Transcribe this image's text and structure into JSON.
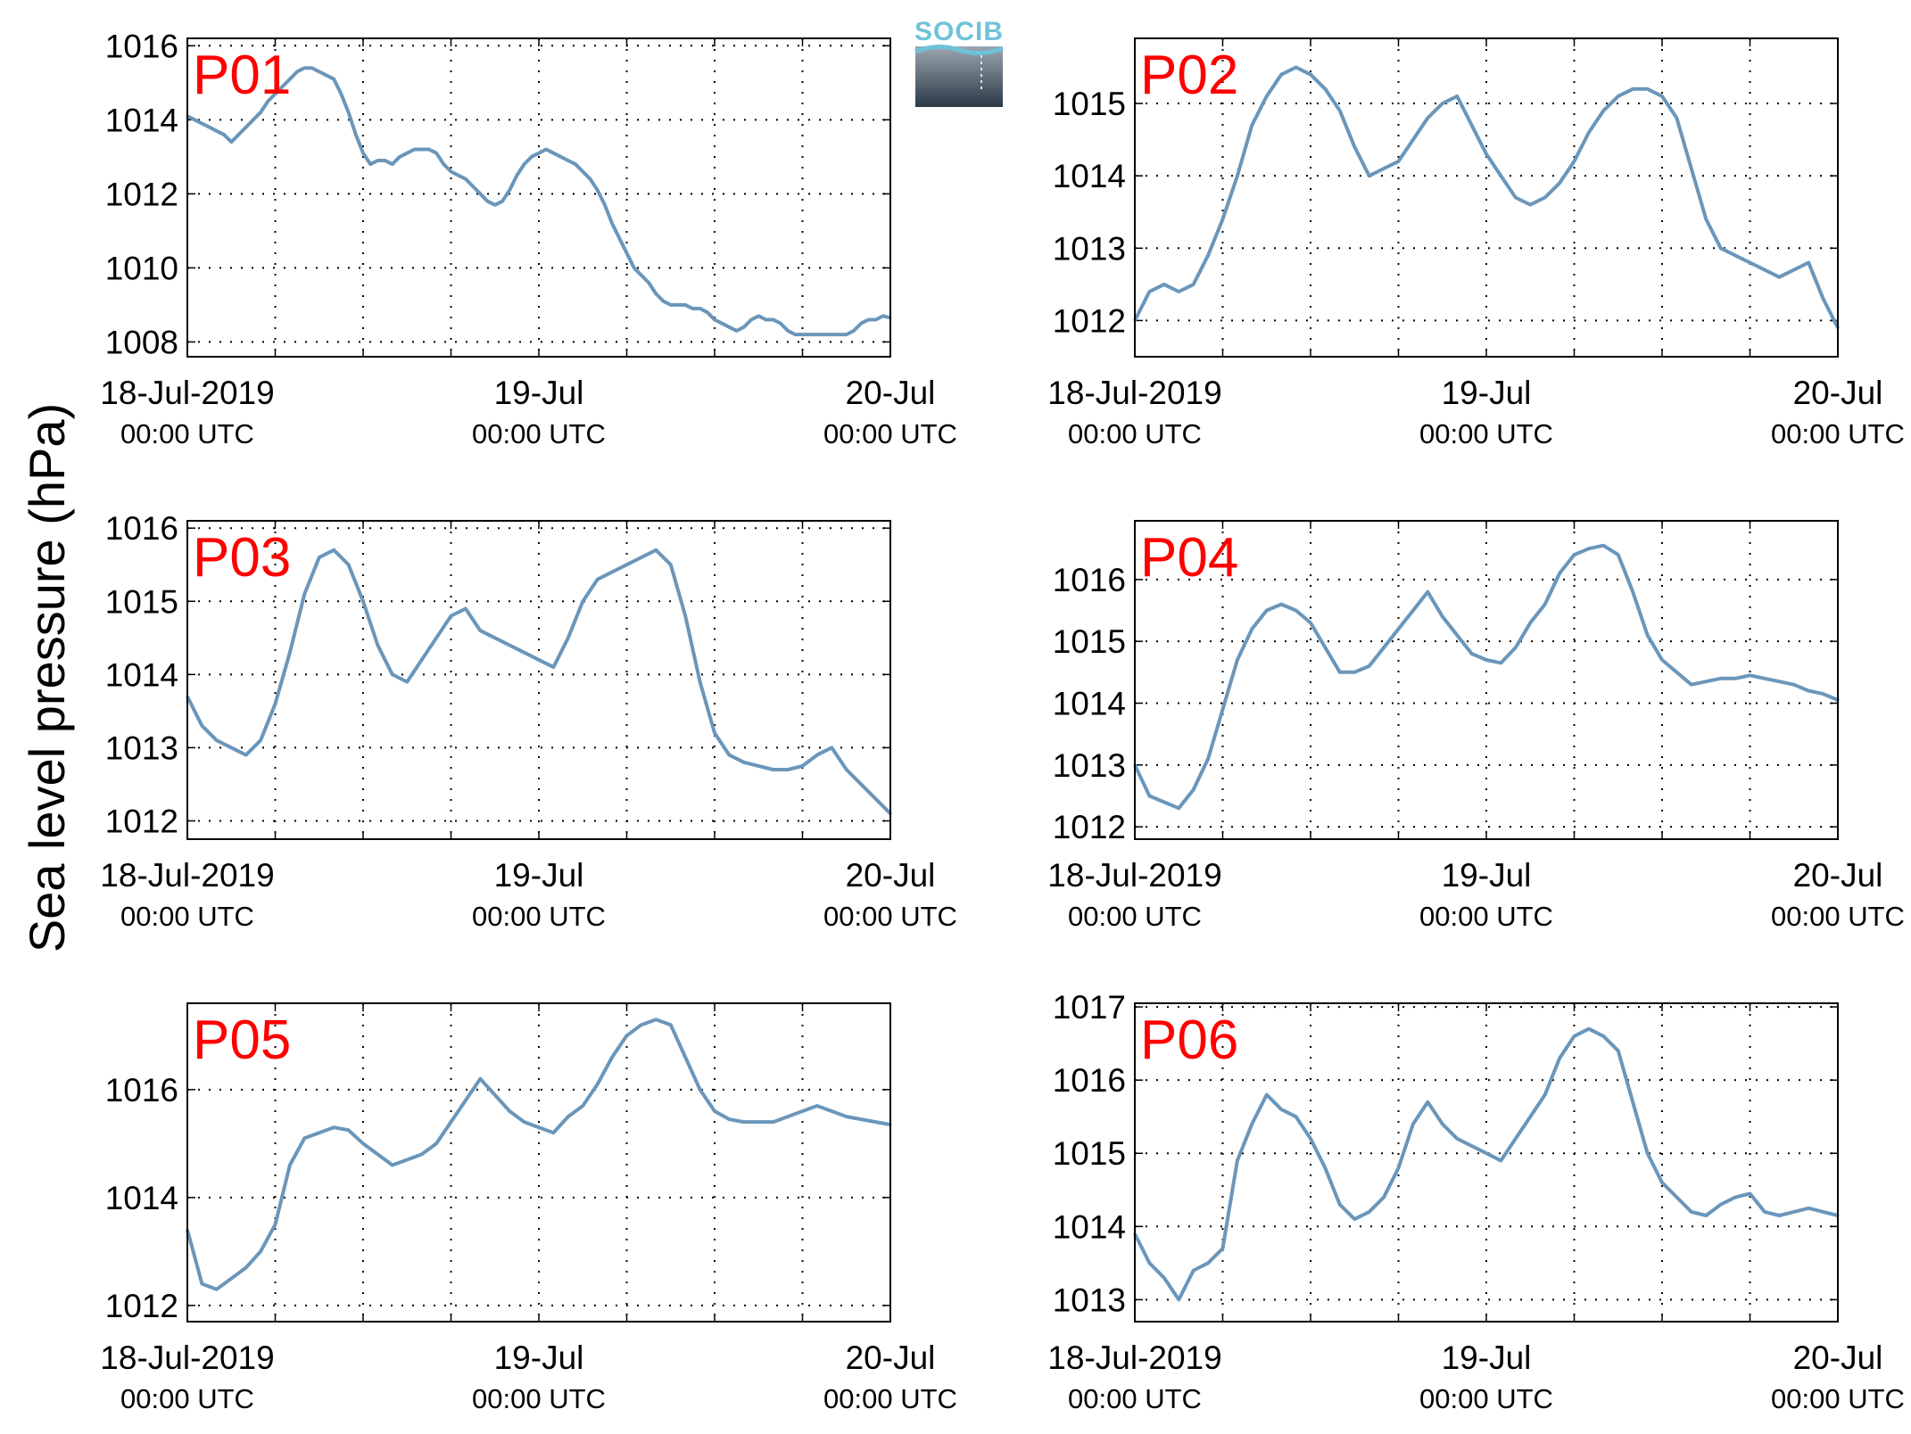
{
  "figure": {
    "ylabel": "Sea level pressure (hPa)",
    "logo_text": "SOCIB",
    "colors": {
      "line": "#6a96ba",
      "panel_label": "#ff0000",
      "axis": "#000000",
      "grid": "#000000"
    }
  },
  "chart_data": [
    {
      "type": "line",
      "panel": "P01",
      "xlim": [
        0,
        48
      ],
      "ylim": [
        1007.6,
        1016.2
      ],
      "yticks": [
        1008,
        1010,
        1012,
        1014,
        1016
      ],
      "xticks": [
        {
          "x": 0,
          "label": "18-Jul-2019",
          "sublabel": "00:00 UTC"
        },
        {
          "x": 24,
          "label": "19-Jul",
          "sublabel": "00:00 UTC"
        },
        {
          "x": 48,
          "label": "20-Jul",
          "sublabel": "00:00 UTC"
        }
      ],
      "x": [
        0,
        0.5,
        1,
        1.5,
        2,
        2.5,
        3,
        3.5,
        4,
        4.5,
        5,
        5.5,
        6,
        6.5,
        7,
        7.5,
        8,
        8.5,
        9,
        9.5,
        10,
        10.5,
        11,
        11.5,
        12,
        12.5,
        13,
        13.5,
        14,
        14.5,
        15,
        15.5,
        16,
        16.5,
        17,
        17.5,
        18,
        18.5,
        19,
        19.5,
        20,
        20.5,
        21,
        21.5,
        22,
        22.5,
        23,
        23.5,
        24,
        24.5,
        25,
        25.5,
        26,
        26.5,
        27,
        27.5,
        28,
        28.5,
        29,
        29.5,
        30,
        30.5,
        31,
        31.5,
        32,
        32.5,
        33,
        33.5,
        34,
        34.5,
        35,
        35.5,
        36,
        36.5,
        37,
        37.5,
        38,
        38.5,
        39,
        39.5,
        40,
        40.5,
        41,
        41.5,
        42,
        42.5,
        43,
        43.5,
        44,
        44.5,
        45,
        45.5,
        46,
        46.5,
        47,
        47.5,
        48
      ],
      "y": [
        1014.1,
        1014,
        1013.9,
        1013.8,
        1013.7,
        1013.6,
        1013.4,
        1013.6,
        1013.8,
        1014,
        1014.2,
        1014.5,
        1014.7,
        1014.9,
        1015.1,
        1015.3,
        1015.4,
        1015.4,
        1015.3,
        1015.2,
        1015.1,
        1014.7,
        1014.2,
        1013.6,
        1013.1,
        1012.8,
        1012.9,
        1012.9,
        1012.8,
        1013,
        1013.1,
        1013.2,
        1013.2,
        1013.2,
        1013.1,
        1012.8,
        1012.6,
        1012.5,
        1012.4,
        1012.2,
        1012,
        1011.8,
        1011.7,
        1011.8,
        1012.1,
        1012.5,
        1012.8,
        1013,
        1013.1,
        1013.2,
        1013.1,
        1013,
        1012.9,
        1012.8,
        1012.6,
        1012.4,
        1012.1,
        1011.7,
        1011.2,
        1010.8,
        1010.4,
        1010,
        1009.8,
        1009.6,
        1009.3,
        1009.1,
        1009,
        1009,
        1009,
        1008.9,
        1008.9,
        1008.8,
        1008.6,
        1008.5,
        1008.4,
        1008.3,
        1008.4,
        1008.6,
        1008.7,
        1008.6,
        1008.6,
        1008.5,
        1008.3,
        1008.2,
        1008.2,
        1008.2,
        1008.2,
        1008.2,
        1008.2,
        1008.2,
        1008.2,
        1008.3,
        1008.5,
        1008.6,
        1008.6,
        1008.7,
        1008.65
      ]
    },
    {
      "type": "line",
      "panel": "P02",
      "xlim": [
        0,
        48
      ],
      "ylim": [
        1011.5,
        1015.9
      ],
      "yticks": [
        1012,
        1013,
        1014,
        1015
      ],
      "xticks": [
        {
          "x": 0,
          "label": "18-Jul-2019",
          "sublabel": "00:00 UTC"
        },
        {
          "x": 24,
          "label": "19-Jul",
          "sublabel": "00:00 UTC"
        },
        {
          "x": 48,
          "label": "20-Jul",
          "sublabel": "00:00 UTC"
        }
      ],
      "x": [
        0,
        1,
        2,
        3,
        4,
        5,
        6,
        7,
        8,
        9,
        10,
        11,
        12,
        13,
        14,
        15,
        16,
        17,
        18,
        19,
        20,
        21,
        22,
        23,
        24,
        25,
        26,
        27,
        28,
        29,
        30,
        31,
        32,
        33,
        34,
        35,
        36,
        37,
        38,
        39,
        40,
        41,
        42,
        43,
        44,
        45,
        46,
        47,
        48
      ],
      "y": [
        1012,
        1012.4,
        1012.5,
        1012.4,
        1012.5,
        1012.9,
        1013.4,
        1014,
        1014.7,
        1015.1,
        1015.4,
        1015.5,
        1015.4,
        1015.2,
        1014.9,
        1014.4,
        1014,
        1014.1,
        1014.2,
        1014.5,
        1014.8,
        1015,
        1015.1,
        1014.7,
        1014.3,
        1014,
        1013.7,
        1013.6,
        1013.7,
        1013.9,
        1014.2,
        1014.6,
        1014.9,
        1015.1,
        1015.2,
        1015.2,
        1015.1,
        1014.8,
        1014.1,
        1013.4,
        1013,
        1012.9,
        1012.8,
        1012.7,
        1012.6,
        1012.7,
        1012.8,
        1012.3,
        1011.9
      ]
    },
    {
      "type": "line",
      "panel": "P03",
      "xlim": [
        0,
        48
      ],
      "ylim": [
        1011.75,
        1016.1
      ],
      "yticks": [
        1012,
        1013,
        1014,
        1015,
        1016
      ],
      "xticks": [
        {
          "x": 0,
          "label": "18-Jul-2019",
          "sublabel": "00:00 UTC"
        },
        {
          "x": 24,
          "label": "19-Jul",
          "sublabel": "00:00 UTC"
        },
        {
          "x": 48,
          "label": "20-Jul",
          "sublabel": "00:00 UTC"
        }
      ],
      "x": [
        0,
        1,
        2,
        3,
        4,
        5,
        6,
        7,
        8,
        9,
        10,
        11,
        12,
        13,
        14,
        15,
        16,
        17,
        18,
        19,
        20,
        21,
        22,
        23,
        24,
        25,
        26,
        27,
        28,
        29,
        30,
        31,
        32,
        33,
        34,
        35,
        36,
        37,
        38,
        39,
        40,
        41,
        42,
        43,
        44,
        45,
        46,
        47,
        48
      ],
      "y": [
        1013.7,
        1013.3,
        1013.1,
        1013,
        1012.9,
        1013.1,
        1013.6,
        1014.3,
        1015.1,
        1015.6,
        1015.7,
        1015.5,
        1015,
        1014.4,
        1014,
        1013.9,
        1014.2,
        1014.5,
        1014.8,
        1014.9,
        1014.6,
        1014.5,
        1014.4,
        1014.3,
        1014.2,
        1014.1,
        1014.5,
        1015,
        1015.3,
        1015.4,
        1015.5,
        1015.6,
        1015.7,
        1015.5,
        1014.8,
        1013.9,
        1013.2,
        1012.9,
        1012.8,
        1012.75,
        1012.7,
        1012.7,
        1012.75,
        1012.9,
        1013,
        1012.7,
        1012.5,
        1012.3,
        1012.1
      ]
    },
    {
      "type": "line",
      "panel": "P04",
      "xlim": [
        0,
        48
      ],
      "ylim": [
        1011.8,
        1016.95
      ],
      "yticks": [
        1012,
        1013,
        1014,
        1015,
        1016
      ],
      "xticks": [
        {
          "x": 0,
          "label": "18-Jul-2019",
          "sublabel": "00:00 UTC"
        },
        {
          "x": 24,
          "label": "19-Jul",
          "sublabel": "00:00 UTC"
        },
        {
          "x": 48,
          "label": "20-Jul",
          "sublabel": "00:00 UTC"
        }
      ],
      "x": [
        0,
        1,
        2,
        3,
        4,
        5,
        6,
        7,
        8,
        9,
        10,
        11,
        12,
        13,
        14,
        15,
        16,
        17,
        18,
        19,
        20,
        21,
        22,
        23,
        24,
        25,
        26,
        27,
        28,
        29,
        30,
        31,
        32,
        33,
        34,
        35,
        36,
        37,
        38,
        39,
        40,
        41,
        42,
        43,
        44,
        45,
        46,
        47,
        48
      ],
      "y": [
        1013,
        1012.5,
        1012.4,
        1012.3,
        1012.6,
        1013.1,
        1013.9,
        1014.7,
        1015.2,
        1015.5,
        1015.6,
        1015.5,
        1015.3,
        1014.9,
        1014.5,
        1014.5,
        1014.6,
        1014.9,
        1015.2,
        1015.5,
        1015.8,
        1015.4,
        1015.1,
        1014.8,
        1014.7,
        1014.65,
        1014.9,
        1015.3,
        1015.6,
        1016.1,
        1016.4,
        1016.5,
        1016.55,
        1016.4,
        1015.8,
        1015.1,
        1014.7,
        1014.5,
        1014.3,
        1014.35,
        1014.4,
        1014.4,
        1014.45,
        1014.4,
        1014.35,
        1014.3,
        1014.2,
        1014.15,
        1014.05
      ]
    },
    {
      "type": "line",
      "panel": "P05",
      "xlim": [
        0,
        48
      ],
      "ylim": [
        1011.7,
        1017.6
      ],
      "yticks": [
        1012,
        1014,
        1016
      ],
      "xticks": [
        {
          "x": 0,
          "label": "18-Jul-2019",
          "sublabel": "00:00 UTC"
        },
        {
          "x": 24,
          "label": "19-Jul",
          "sublabel": "00:00 UTC"
        },
        {
          "x": 48,
          "label": "20-Jul",
          "sublabel": "00:00 UTC"
        }
      ],
      "x": [
        0,
        1,
        2,
        3,
        4,
        5,
        6,
        7,
        8,
        9,
        10,
        11,
        12,
        13,
        14,
        15,
        16,
        17,
        18,
        19,
        20,
        21,
        22,
        23,
        24,
        25,
        26,
        27,
        28,
        29,
        30,
        31,
        32,
        33,
        34,
        35,
        36,
        37,
        38,
        39,
        40,
        41,
        42,
        43,
        44,
        45,
        46,
        47,
        48
      ],
      "y": [
        1013.4,
        1012.4,
        1012.3,
        1012.5,
        1012.7,
        1013,
        1013.5,
        1014.6,
        1015.1,
        1015.2,
        1015.3,
        1015.25,
        1015,
        1014.8,
        1014.6,
        1014.7,
        1014.8,
        1015,
        1015.4,
        1015.8,
        1016.2,
        1015.9,
        1015.6,
        1015.4,
        1015.3,
        1015.2,
        1015.5,
        1015.7,
        1016.1,
        1016.6,
        1017,
        1017.2,
        1017.3,
        1017.2,
        1016.6,
        1016,
        1015.6,
        1015.45,
        1015.4,
        1015.4,
        1015.4,
        1015.5,
        1015.6,
        1015.7,
        1015.6,
        1015.5,
        1015.45,
        1015.4,
        1015.35
      ]
    },
    {
      "type": "line",
      "panel": "P06",
      "xlim": [
        0,
        48
      ],
      "ylim": [
        1012.7,
        1017.05
      ],
      "yticks": [
        1013,
        1014,
        1015,
        1016,
        1017
      ],
      "xticks": [
        {
          "x": 0,
          "label": "18-Jul-2019",
          "sublabel": "00:00 UTC"
        },
        {
          "x": 24,
          "label": "19-Jul",
          "sublabel": "00:00 UTC"
        },
        {
          "x": 48,
          "label": "20-Jul",
          "sublabel": "00:00 UTC"
        }
      ],
      "x": [
        0,
        1,
        2,
        3,
        4,
        5,
        6,
        7,
        8,
        9,
        10,
        11,
        12,
        13,
        14,
        15,
        16,
        17,
        18,
        19,
        20,
        21,
        22,
        23,
        24,
        25,
        26,
        27,
        28,
        29,
        30,
        31,
        32,
        33,
        34,
        35,
        36,
        37,
        38,
        39,
        40,
        41,
        42,
        43,
        44,
        45,
        46,
        47,
        48
      ],
      "y": [
        1013.9,
        1013.5,
        1013.3,
        1013,
        1013.4,
        1013.5,
        1013.7,
        1014.9,
        1015.4,
        1015.8,
        1015.6,
        1015.5,
        1015.2,
        1014.8,
        1014.3,
        1014.1,
        1014.2,
        1014.4,
        1014.8,
        1015.4,
        1015.7,
        1015.4,
        1015.2,
        1015.1,
        1015,
        1014.9,
        1015.2,
        1015.5,
        1015.8,
        1016.3,
        1016.6,
        1016.7,
        1016.6,
        1016.4,
        1015.7,
        1015,
        1014.6,
        1014.4,
        1014.2,
        1014.15,
        1014.3,
        1014.4,
        1014.45,
        1014.2,
        1014.15,
        1014.2,
        1014.25,
        1014.2,
        1014.15
      ]
    }
  ]
}
